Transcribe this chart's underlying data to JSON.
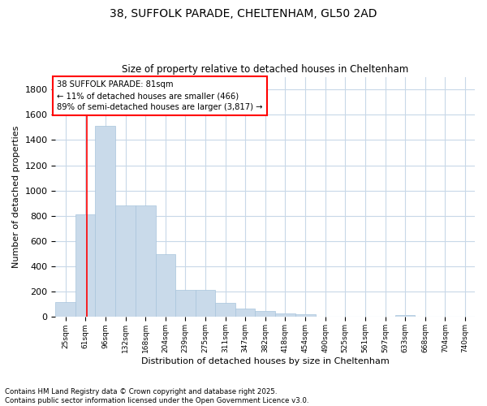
{
  "title1": "38, SUFFOLK PARADE, CHELTENHAM, GL50 2AD",
  "title2": "Size of property relative to detached houses in Cheltenham",
  "xlabel": "Distribution of detached houses by size in Cheltenham",
  "ylabel": "Number of detached properties",
  "bar_labels": [
    "25sqm",
    "61sqm",
    "96sqm",
    "132sqm",
    "168sqm",
    "204sqm",
    "239sqm",
    "275sqm",
    "311sqm",
    "347sqm",
    "382sqm",
    "418sqm",
    "454sqm",
    "490sqm",
    "525sqm",
    "561sqm",
    "597sqm",
    "633sqm",
    "668sqm",
    "704sqm",
    "740sqm"
  ],
  "bar_values": [
    120,
    810,
    1510,
    880,
    880,
    500,
    215,
    215,
    110,
    70,
    45,
    30,
    20,
    0,
    0,
    0,
    0,
    15,
    0,
    0,
    0
  ],
  "bar_color": "#c9daea",
  "bar_edge_color": "#a8c4dc",
  "grid_color": "#c8d8e8",
  "annotation_text": "38 SUFFOLK PARADE: 81sqm\n← 11% of detached houses are smaller (466)\n89% of semi-detached houses are larger (3,817) →",
  "annotation_box_color": "white",
  "annotation_box_edge_color": "red",
  "vline_x": 81,
  "vline_color": "red",
  "footer1": "Contains HM Land Registry data © Crown copyright and database right 2025.",
  "footer2": "Contains public sector information licensed under the Open Government Licence v3.0.",
  "ylim": [
    0,
    1900
  ],
  "bin_edges": [
    25,
    61,
    96,
    132,
    168,
    204,
    239,
    275,
    311,
    347,
    382,
    418,
    454,
    490,
    525,
    561,
    597,
    633,
    668,
    704,
    740,
    775
  ],
  "yticks": [
    0,
    200,
    400,
    600,
    800,
    1000,
    1200,
    1400,
    1600,
    1800
  ]
}
